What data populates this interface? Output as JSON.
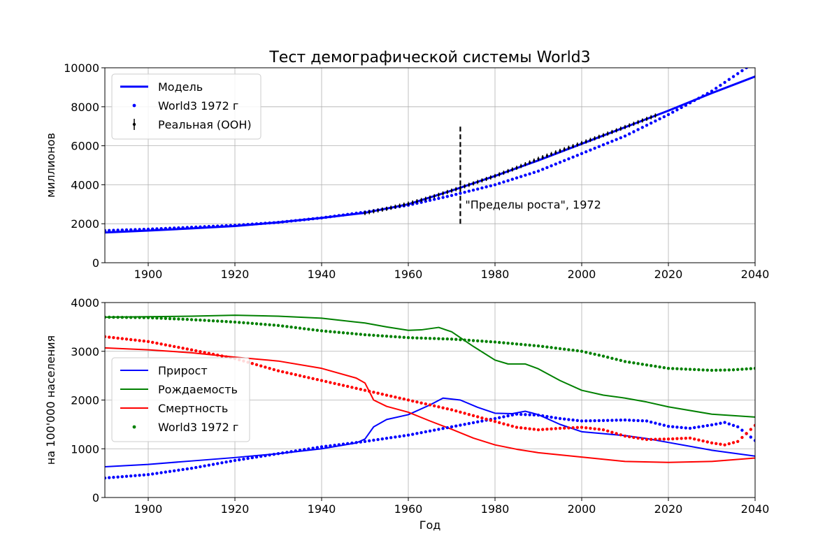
{
  "chart_data": [
    {
      "type": "line",
      "title": "Тест демографической системы World3",
      "xlabel": "",
      "ylabel": "миллионов",
      "xlim": [
        1890,
        2040
      ],
      "ylim": [
        0,
        10000
      ],
      "xticks": [
        1900,
        1920,
        1940,
        1960,
        1980,
        2000,
        2020,
        2040
      ],
      "yticks": [
        0,
        2000,
        4000,
        6000,
        8000,
        10000
      ],
      "grid": true,
      "legend_position": "top-left",
      "annotation": {
        "text": "\"Пределы роста\", 1972",
        "x": 1972,
        "y_from": 2000,
        "y_to": 7000
      },
      "series": [
        {
          "name": "Модель",
          "style": "line",
          "color": "#0000ff",
          "x": [
            1890,
            1900,
            1910,
            1920,
            1930,
            1940,
            1950,
            1960,
            1970,
            1980,
            1990,
            2000,
            2010,
            2020,
            2030,
            2040
          ],
          "y": [
            1550,
            1650,
            1760,
            1880,
            2070,
            2300,
            2560,
            3000,
            3700,
            4450,
            5250,
            6100,
            6950,
            7800,
            8700,
            9550
          ]
        },
        {
          "name": "World3 1972 г",
          "style": "dots",
          "color": "#0000ff",
          "x": [
            1890,
            1900,
            1910,
            1920,
            1930,
            1940,
            1950,
            1960,
            1970,
            1980,
            1990,
            2000,
            2010,
            2020,
            2030,
            2040
          ],
          "y": [
            1650,
            1720,
            1820,
            1920,
            2070,
            2300,
            2600,
            2950,
            3450,
            4000,
            4700,
            5600,
            6500,
            7600,
            8800,
            10300
          ]
        },
        {
          "name": "Реальная (ООН)",
          "style": "errorbar",
          "color": "#000000",
          "x": [
            1950,
            1955,
            1960,
            1965,
            1970,
            1975,
            1980,
            1985,
            1990,
            1995,
            2000,
            2005,
            2010,
            2015,
            2017
          ],
          "y": [
            2550,
            2770,
            3030,
            3340,
            3700,
            4070,
            4450,
            4870,
            5330,
            5740,
            6140,
            6540,
            6960,
            7380,
            7550
          ]
        }
      ]
    },
    {
      "type": "line",
      "title": "",
      "xlabel": "Год",
      "ylabel": "на 100'000 населения",
      "xlim": [
        1890,
        2040
      ],
      "ylim": [
        0,
        4000
      ],
      "xticks": [
        1900,
        1920,
        1940,
        1960,
        1980,
        2000,
        2020,
        2040
      ],
      "yticks": [
        0,
        1000,
        2000,
        3000,
        4000
      ],
      "grid": true,
      "legend_position": "center-left",
      "series": [
        {
          "name": "Прирост",
          "style": "line",
          "color": "#0000ff",
          "x": [
            1890,
            1900,
            1910,
            1920,
            1930,
            1940,
            1948,
            1950,
            1952,
            1955,
            1960,
            1965,
            1968,
            1972,
            1976,
            1980,
            1984,
            1987,
            1990,
            1995,
            2000,
            2005,
            2010,
            2015,
            2020,
            2030,
            2040
          ],
          "y": [
            630,
            680,
            750,
            820,
            900,
            1000,
            1120,
            1200,
            1450,
            1600,
            1700,
            1900,
            2040,
            2000,
            1850,
            1730,
            1720,
            1770,
            1700,
            1500,
            1350,
            1310,
            1270,
            1210,
            1130,
            970,
            850
          ]
        },
        {
          "name": "Рождаемость",
          "style": "line",
          "color": "#008000",
          "x": [
            1890,
            1900,
            1910,
            1920,
            1930,
            1940,
            1950,
            1955,
            1960,
            1963,
            1967,
            1970,
            1975,
            1980,
            1983,
            1987,
            1990,
            1995,
            2000,
            2005,
            2010,
            2015,
            2020,
            2030,
            2040
          ],
          "y": [
            3700,
            3710,
            3720,
            3740,
            3720,
            3680,
            3580,
            3500,
            3430,
            3440,
            3490,
            3400,
            3100,
            2820,
            2740,
            2740,
            2640,
            2400,
            2200,
            2100,
            2040,
            1960,
            1860,
            1710,
            1650
          ]
        },
        {
          "name": "Смертность",
          "style": "line",
          "color": "#ff0000",
          "x": [
            1890,
            1900,
            1910,
            1920,
            1930,
            1940,
            1948,
            1950,
            1952,
            1955,
            1960,
            1965,
            1970,
            1975,
            1980,
            1985,
            1990,
            2000,
            2010,
            2020,
            2030,
            2040
          ],
          "y": [
            3070,
            3030,
            2970,
            2880,
            2800,
            2650,
            2450,
            2350,
            2000,
            1870,
            1750,
            1570,
            1400,
            1220,
            1080,
            990,
            920,
            830,
            740,
            720,
            740,
            810
          ]
        },
        {
          "name": "World3 1972 г",
          "style": "dots",
          "color": "#008000",
          "x": [
            1890,
            1900,
            1910,
            1920,
            1930,
            1940,
            1950,
            1960,
            1970,
            1980,
            1990,
            2000,
            2005,
            2010,
            2015,
            2020,
            2025,
            2030,
            2035,
            2040
          ],
          "y": [
            3700,
            3690,
            3650,
            3600,
            3530,
            3420,
            3340,
            3280,
            3250,
            3190,
            3110,
            3000,
            2900,
            2790,
            2720,
            2650,
            2630,
            2610,
            2620,
            2650
          ]
        },
        {
          "name": "",
          "style": "dots",
          "color": "#0000ff",
          "x": [
            1890,
            1900,
            1910,
            1920,
            1930,
            1940,
            1950,
            1960,
            1970,
            1980,
            1985,
            1990,
            1995,
            2000,
            2005,
            2010,
            2015,
            2020,
            2025,
            2030,
            2033,
            2036,
            2040
          ],
          "y": [
            400,
            470,
            600,
            760,
            900,
            1040,
            1150,
            1280,
            1450,
            1620,
            1710,
            1690,
            1620,
            1570,
            1580,
            1590,
            1570,
            1460,
            1420,
            1490,
            1540,
            1450,
            1170
          ]
        },
        {
          "name": "",
          "style": "dots",
          "color": "#ff0000",
          "x": [
            1890,
            1900,
            1910,
            1920,
            1930,
            1940,
            1950,
            1960,
            1970,
            1980,
            1985,
            1990,
            1995,
            2000,
            2005,
            2010,
            2015,
            2020,
            2025,
            2030,
            2033,
            2036,
            2040
          ],
          "y": [
            3300,
            3200,
            3030,
            2850,
            2600,
            2400,
            2200,
            2000,
            1800,
            1560,
            1440,
            1390,
            1420,
            1440,
            1390,
            1260,
            1190,
            1200,
            1220,
            1120,
            1080,
            1150,
            1480
          ]
        }
      ]
    }
  ]
}
